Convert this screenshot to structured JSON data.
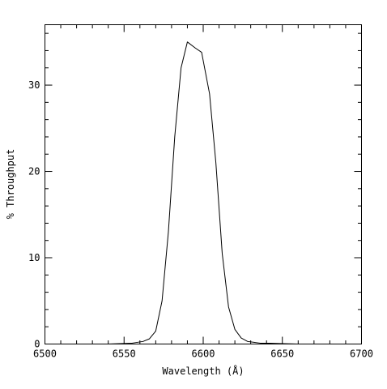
{
  "chart_data": {
    "type": "line",
    "title": "",
    "xlabel": "Wavelength (Å)",
    "ylabel": "% Throughput",
    "xlim": [
      6500,
      6700
    ],
    "ylim": [
      0,
      37
    ],
    "x_ticks": [
      6500,
      6550,
      6600,
      6650,
      6700
    ],
    "y_ticks": [
      0,
      10,
      20,
      30
    ],
    "x_tick_labels": [
      "6500",
      "6550",
      "6600",
      "6650",
      "6700"
    ],
    "y_tick_labels": [
      "0",
      "10",
      "20",
      "30"
    ],
    "grid": false,
    "legend": "none",
    "line_color": "#000000",
    "series": [
      {
        "x": [
          6540,
          6555,
          6562,
          6566,
          6570,
          6574,
          6578,
          6582,
          6586,
          6590,
          6595,
          6599,
          6604,
          6608,
          6612,
          6616,
          6620,
          6624,
          6628,
          6632,
          6636,
          6642,
          6650,
          6660,
          6670
        ],
        "y": [
          0.0,
          0.1,
          0.3,
          0.6,
          1.5,
          5.0,
          13.0,
          24.0,
          32.0,
          35.0,
          34.3,
          33.8,
          29.0,
          21.0,
          10.5,
          4.3,
          1.7,
          0.7,
          0.3,
          0.2,
          0.1,
          0.1,
          0.05,
          0.0,
          0.0
        ]
      }
    ]
  }
}
